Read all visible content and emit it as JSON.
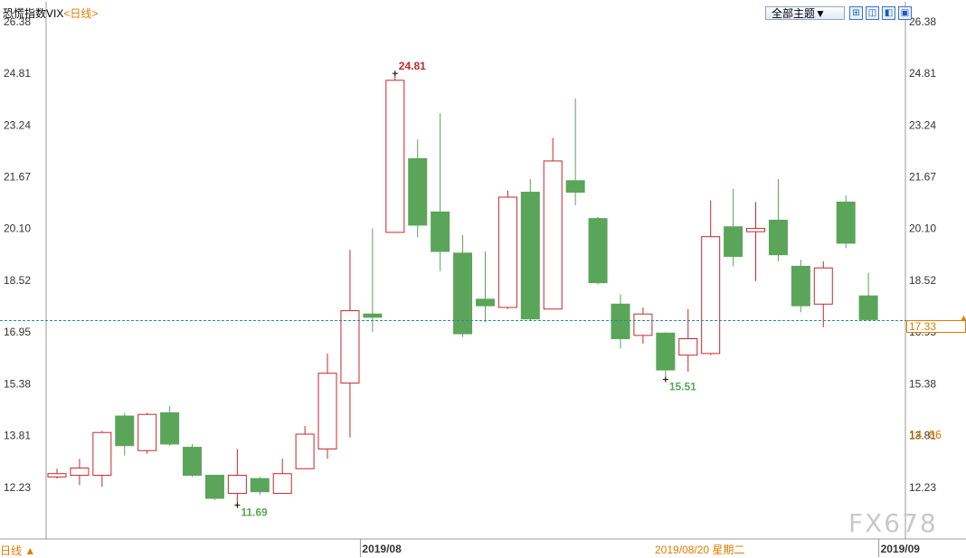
{
  "header": {
    "title": "恐慌指数VIX",
    "period": "<日线>",
    "theme_button": "全部主题▼",
    "tools": [
      {
        "icon": "fit-icon",
        "glyph": "⊞"
      },
      {
        "icon": "split-icon",
        "glyph": "◫"
      },
      {
        "icon": "chart-left-icon",
        "glyph": "◧"
      },
      {
        "icon": "expand-icon",
        "glyph": "▣"
      }
    ]
  },
  "footer": {
    "period_button": "日线 ▲",
    "crosshair_date": "2019/08/20 星期二",
    "watermark": "FX678"
  },
  "crosshair": {
    "value": 17.33,
    "label": "17.33"
  },
  "reference_price": {
    "value": 14.06,
    "label": "14.06"
  },
  "colors": {
    "up": "#c8272d",
    "down": "#5aa55a",
    "grid": "#dddddd",
    "axis_text": "#333333",
    "accent": "#e07b00"
  },
  "chart_data": {
    "type": "candlestick",
    "y_ticks": [
      "26.38",
      "24.81",
      "23.24",
      "21.67",
      "20.10",
      "18.52",
      "16.95",
      "15.38",
      "13.81",
      "12.23"
    ],
    "ylim": [
      11.35,
      26.38
    ],
    "x_labels": [
      {
        "label": "2019/08",
        "index": 14
      },
      {
        "label": "2019/09",
        "index": 37
      }
    ],
    "annotations": [
      {
        "label": "24.81",
        "index": 15,
        "value": 24.81,
        "kind": "high"
      },
      {
        "label": "11.69",
        "index": 8,
        "value": 11.69,
        "kind": "low"
      },
      {
        "label": "15.51",
        "index": 27,
        "value": 15.51,
        "kind": "low"
      }
    ],
    "candles": [
      {
        "open": 12.55,
        "close": 12.65,
        "high": 12.8,
        "low": 12.5
      },
      {
        "open": 12.6,
        "close": 12.82,
        "high": 13.1,
        "low": 12.3
      },
      {
        "open": 12.6,
        "close": 13.9,
        "high": 13.95,
        "low": 12.25
      },
      {
        "open": 14.4,
        "close": 13.5,
        "high": 14.5,
        "low": 13.2
      },
      {
        "open": 13.35,
        "close": 14.45,
        "high": 14.5,
        "low": 13.25
      },
      {
        "open": 14.5,
        "close": 13.55,
        "high": 14.7,
        "low": 13.5
      },
      {
        "open": 13.45,
        "close": 12.6,
        "high": 13.55,
        "low": 12.55
      },
      {
        "open": 12.6,
        "close": 11.9,
        "high": 12.6,
        "low": 11.85
      },
      {
        "open": 12.05,
        "close": 12.6,
        "high": 13.4,
        "low": 11.69
      },
      {
        "open": 12.5,
        "close": 12.1,
        "high": 12.55,
        "low": 12.0
      },
      {
        "open": 12.05,
        "close": 12.65,
        "high": 13.1,
        "low": 12.05
      },
      {
        "open": 12.8,
        "close": 13.85,
        "high": 14.1,
        "low": 12.8
      },
      {
        "open": 13.4,
        "close": 15.7,
        "high": 16.3,
        "low": 13.1
      },
      {
        "open": 15.4,
        "close": 17.6,
        "high": 19.45,
        "low": 13.75
      },
      {
        "open": 17.5,
        "close": 17.4,
        "high": 20.1,
        "low": 16.95
      },
      {
        "open": 19.98,
        "close": 24.6,
        "high": 24.81,
        "low": 19.98
      },
      {
        "open": 22.22,
        "close": 20.2,
        "high": 22.8,
        "low": 19.83
      },
      {
        "open": 20.6,
        "close": 19.4,
        "high": 23.6,
        "low": 18.8
      },
      {
        "open": 19.35,
        "close": 16.9,
        "high": 19.9,
        "low": 16.8
      },
      {
        "open": 17.95,
        "close": 17.75,
        "high": 19.4,
        "low": 17.25
      },
      {
        "open": 17.7,
        "close": 21.05,
        "high": 21.25,
        "low": 17.65
      },
      {
        "open": 21.2,
        "close": 17.35,
        "high": 21.6,
        "low": 17.3
      },
      {
        "open": 17.65,
        "close": 22.15,
        "high": 22.85,
        "low": 17.65
      },
      {
        "open": 21.55,
        "close": 21.2,
        "high": 24.05,
        "low": 20.8
      },
      {
        "open": 20.4,
        "close": 18.45,
        "high": 20.45,
        "low": 18.4
      },
      {
        "open": 17.8,
        "close": 16.75,
        "high": 18.1,
        "low": 16.45
      },
      {
        "open": 16.85,
        "close": 17.5,
        "high": 17.7,
        "low": 16.6
      },
      {
        "open": 16.92,
        "close": 15.8,
        "high": 16.95,
        "low": 15.51
      },
      {
        "open": 16.25,
        "close": 16.75,
        "high": 17.65,
        "low": 15.75
      },
      {
        "open": 16.3,
        "close": 19.85,
        "high": 20.95,
        "low": 16.25
      },
      {
        "open": 20.15,
        "close": 19.25,
        "high": 21.3,
        "low": 18.95
      },
      {
        "open": 20.0,
        "close": 20.1,
        "high": 20.9,
        "low": 18.5
      },
      {
        "open": 20.35,
        "close": 19.3,
        "high": 21.6,
        "low": 19.1
      },
      {
        "open": 18.95,
        "close": 17.75,
        "high": 19.15,
        "low": 17.55
      },
      {
        "open": 17.8,
        "close": 18.9,
        "high": 19.1,
        "low": 17.1
      },
      {
        "open": 20.9,
        "close": 19.65,
        "high": 21.1,
        "low": 19.5
      },
      {
        "open": 18.05,
        "close": 17.33,
        "high": 18.75,
        "low": 17.3
      }
    ]
  }
}
